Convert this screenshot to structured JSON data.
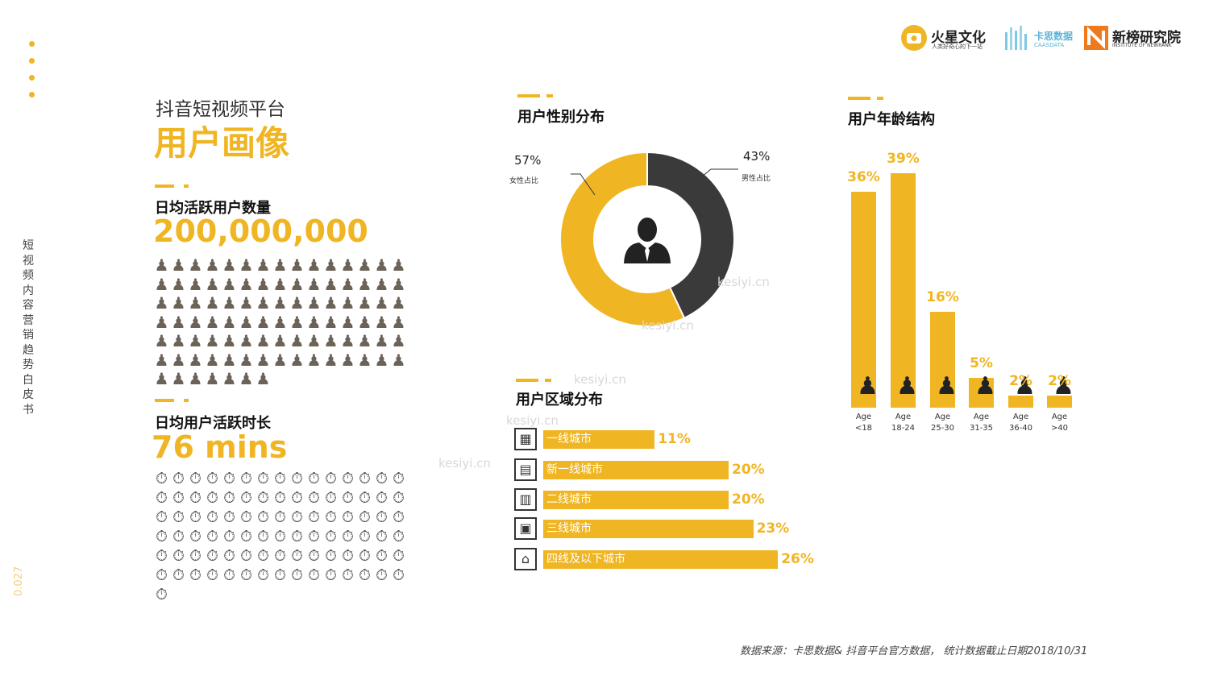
{
  "side": {
    "vertical_title": "短视频内容营销趋势白皮书",
    "page_number": "0.027"
  },
  "logos": {
    "huoxing_name": "火星文化",
    "huoxing_slogan": "人类好奇心的下一站",
    "caasdata_name": "卡思数据",
    "caasdata_en": "CAASDATA",
    "newrank_name": "新榜研究院",
    "newrank_en": "INSTITUTE OF NEWRANK"
  },
  "header": {
    "platform": "抖音短视频平台",
    "title": "用户画像"
  },
  "dau": {
    "label": "日均活跃用户数量",
    "value": "200,000,000"
  },
  "duration": {
    "label": "日均用户活跃时长",
    "value": "76 mins"
  },
  "watermark": "kesiyi.cn",
  "source": "数据来源：卡思数据& 抖音平台官方数据， 统计数据截止日期2018/10/31",
  "chart_data": [
    {
      "type": "pie",
      "title": "用户性别分布",
      "categories": [
        "女性占比",
        "男性占比"
      ],
      "values": [
        57,
        43
      ],
      "labels": [
        "57%",
        "43%"
      ],
      "colors": [
        "#f0b523",
        "#3a3a3a"
      ]
    },
    {
      "type": "bar",
      "orientation": "horizontal",
      "title": "用户区域分布",
      "categories": [
        "一线城市",
        "新一线城市",
        "二线城市",
        "三线城市",
        "四线及以下城市"
      ],
      "values": [
        11,
        20,
        20,
        23,
        26
      ],
      "labels": [
        "11%",
        "20%",
        "20%",
        "23%",
        "26%"
      ],
      "color": "#f0b523"
    },
    {
      "type": "bar",
      "title": "用户年龄结构",
      "categories": [
        [
          "Age",
          "<18"
        ],
        [
          "Age",
          "18-24"
        ],
        [
          "Age",
          "25-30"
        ],
        [
          "Age",
          "31-35"
        ],
        [
          "Age",
          "36-40"
        ],
        [
          "Age",
          ">40"
        ]
      ],
      "values": [
        36,
        39,
        16,
        5,
        2,
        2
      ],
      "labels": [
        "36%",
        "39%",
        "16%",
        "5%",
        "2%",
        "2%"
      ],
      "ylim": [
        0,
        39
      ],
      "color": "#f0b523"
    }
  ]
}
